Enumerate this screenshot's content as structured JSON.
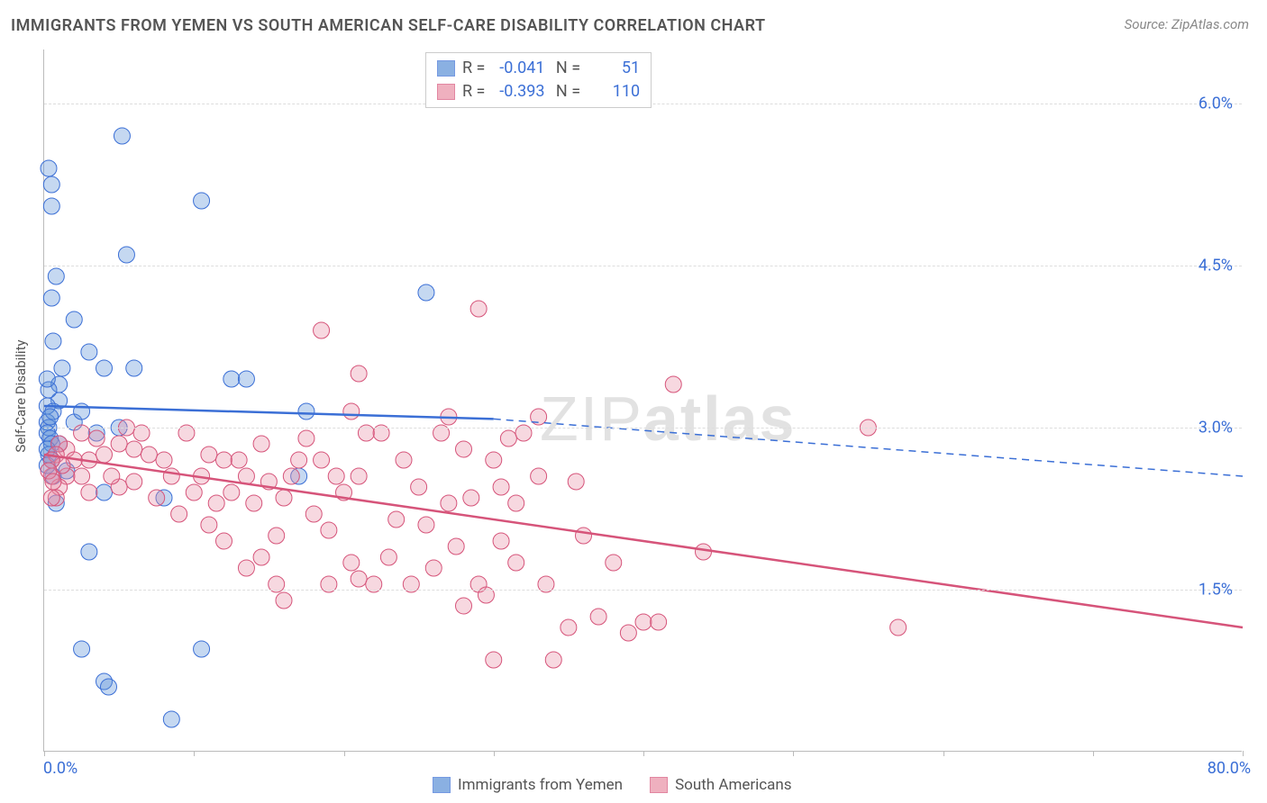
{
  "title": "IMMIGRANTS FROM YEMEN VS SOUTH AMERICAN SELF-CARE DISABILITY CORRELATION CHART",
  "source_label": "Source:",
  "source_name": "ZipAtlas.com",
  "watermark_thin": "ZIP",
  "watermark_bold": "atlas",
  "y_axis_label": "Self-Care Disability",
  "chart": {
    "type": "scatter",
    "background_color": "#ffffff",
    "grid_color": "#dddddd",
    "axis_color": "#bbbbbb",
    "tick_label_color": "#3b6fd6",
    "xlim": [
      0,
      80
    ],
    "ylim": [
      0,
      6.5
    ],
    "x_ticks": [
      0,
      10,
      20,
      30,
      40,
      50,
      60,
      70,
      80
    ],
    "x_min_label": "0.0%",
    "x_max_label": "80.0%",
    "y_gridlines": [
      1.5,
      3.0,
      4.5,
      6.0
    ],
    "y_tick_labels": [
      "1.5%",
      "3.0%",
      "4.5%",
      "6.0%"
    ],
    "marker_radius": 9,
    "marker_fill_opacity": 0.35,
    "line_width": 2.5,
    "series": [
      {
        "name": "Immigrants from Yemen",
        "color": "#5a8fd6",
        "stroke": "#3b6fd6",
        "R": "-0.041",
        "N": "51",
        "trend": {
          "x1": 0,
          "y1": 3.2,
          "x_solid_end": 30,
          "y_solid_end": 3.08,
          "x2": 80,
          "y2": 2.55,
          "dashed_after_solid": true
        },
        "points": [
          [
            0.3,
            5.4
          ],
          [
            5.2,
            5.7
          ],
          [
            0.5,
            5.25
          ],
          [
            0.5,
            5.05
          ],
          [
            10.5,
            5.1
          ],
          [
            5.5,
            4.6
          ],
          [
            0.8,
            4.4
          ],
          [
            0.5,
            4.2
          ],
          [
            2.0,
            4.0
          ],
          [
            0.6,
            3.8
          ],
          [
            3.0,
            3.7
          ],
          [
            4.0,
            3.55
          ],
          [
            6.0,
            3.55
          ],
          [
            1.0,
            3.4
          ],
          [
            25.5,
            4.25
          ],
          [
            12.5,
            3.45
          ],
          [
            13.5,
            3.45
          ],
          [
            1.0,
            3.25
          ],
          [
            0.2,
            3.2
          ],
          [
            0.2,
            3.05
          ],
          [
            0.3,
            3.0
          ],
          [
            0.2,
            2.95
          ],
          [
            0.4,
            2.9
          ],
          [
            1.0,
            2.85
          ],
          [
            0.6,
            3.15
          ],
          [
            2.0,
            3.05
          ],
          [
            3.5,
            2.95
          ],
          [
            0.5,
            2.7
          ],
          [
            1.5,
            2.6
          ],
          [
            8.0,
            2.35
          ],
          [
            17.0,
            2.55
          ],
          [
            17.5,
            3.15
          ],
          [
            4.0,
            2.4
          ],
          [
            0.8,
            2.3
          ],
          [
            3.0,
            1.85
          ],
          [
            2.5,
            0.95
          ],
          [
            10.5,
            0.95
          ],
          [
            4.0,
            0.65
          ],
          [
            4.3,
            0.6
          ],
          [
            8.5,
            0.3
          ],
          [
            0.3,
            3.35
          ],
          [
            0.4,
            3.1
          ],
          [
            0.5,
            2.85
          ],
          [
            0.3,
            2.75
          ],
          [
            0.6,
            2.55
          ],
          [
            2.5,
            3.15
          ],
          [
            0.2,
            3.45
          ],
          [
            1.2,
            3.55
          ],
          [
            0.2,
            2.8
          ],
          [
            0.2,
            2.65
          ],
          [
            5.0,
            3.0
          ]
        ]
      },
      {
        "name": "South Americans",
        "color": "#e98fa5",
        "stroke": "#d6547a",
        "R": "-0.393",
        "N": "110",
        "trend": {
          "x1": 0,
          "y1": 2.75,
          "x_solid_end": 80,
          "y_solid_end": 1.15,
          "x2": 80,
          "y2": 1.15,
          "dashed_after_solid": false
        },
        "points": [
          [
            18.5,
            3.9
          ],
          [
            29.0,
            4.1
          ],
          [
            21.0,
            3.5
          ],
          [
            21.5,
            2.95
          ],
          [
            22.5,
            2.95
          ],
          [
            21.0,
            2.55
          ],
          [
            9.5,
            2.95
          ],
          [
            11.0,
            2.75
          ],
          [
            12.0,
            2.7
          ],
          [
            8.0,
            2.7
          ],
          [
            7.0,
            2.75
          ],
          [
            6.0,
            2.8
          ],
          [
            5.0,
            2.85
          ],
          [
            4.0,
            2.75
          ],
          [
            3.0,
            2.7
          ],
          [
            2.5,
            2.55
          ],
          [
            1.5,
            2.55
          ],
          [
            1.0,
            2.45
          ],
          [
            0.8,
            2.35
          ],
          [
            0.5,
            2.35
          ],
          [
            0.5,
            2.55
          ],
          [
            1.5,
            2.8
          ],
          [
            3.5,
            2.9
          ],
          [
            5.5,
            3.0
          ],
          [
            6.5,
            2.95
          ],
          [
            8.5,
            2.55
          ],
          [
            10.0,
            2.4
          ],
          [
            12.5,
            2.4
          ],
          [
            13.5,
            2.55
          ],
          [
            14.0,
            2.3
          ],
          [
            15.0,
            2.5
          ],
          [
            16.0,
            2.35
          ],
          [
            17.0,
            2.7
          ],
          [
            18.0,
            2.2
          ],
          [
            19.0,
            2.05
          ],
          [
            20.0,
            2.4
          ],
          [
            20.5,
            1.75
          ],
          [
            21.0,
            1.6
          ],
          [
            22.0,
            1.55
          ],
          [
            23.0,
            1.8
          ],
          [
            24.0,
            2.7
          ],
          [
            25.0,
            2.45
          ],
          [
            25.5,
            2.1
          ],
          [
            26.0,
            1.7
          ],
          [
            27.0,
            2.3
          ],
          [
            27.5,
            1.9
          ],
          [
            28.0,
            2.8
          ],
          [
            28.5,
            2.35
          ],
          [
            29.0,
            1.55
          ],
          [
            29.5,
            1.45
          ],
          [
            30.0,
            2.7
          ],
          [
            30.5,
            1.95
          ],
          [
            31.0,
            2.9
          ],
          [
            31.5,
            1.75
          ],
          [
            32.0,
            2.95
          ],
          [
            33.0,
            3.1
          ],
          [
            33.5,
            1.55
          ],
          [
            34.0,
            0.85
          ],
          [
            35.0,
            1.15
          ],
          [
            36.0,
            2.0
          ],
          [
            37.0,
            1.25
          ],
          [
            38.0,
            1.75
          ],
          [
            39.0,
            1.1
          ],
          [
            40.0,
            1.2
          ],
          [
            41.0,
            1.2
          ],
          [
            42.0,
            3.4
          ],
          [
            44.0,
            1.85
          ],
          [
            57.0,
            1.15
          ],
          [
            5.0,
            2.45
          ],
          [
            6.0,
            2.5
          ],
          [
            7.5,
            2.35
          ],
          [
            9.0,
            2.2
          ],
          [
            10.5,
            2.55
          ],
          [
            11.5,
            2.3
          ],
          [
            13.0,
            2.7
          ],
          [
            14.5,
            2.85
          ],
          [
            15.5,
            2.0
          ],
          [
            16.5,
            2.55
          ],
          [
            17.5,
            2.9
          ],
          [
            18.5,
            2.7
          ],
          [
            19.5,
            2.55
          ],
          [
            20.5,
            3.15
          ],
          [
            26.5,
            2.95
          ],
          [
            27.0,
            3.1
          ],
          [
            28.0,
            1.35
          ],
          [
            24.5,
            1.55
          ],
          [
            23.5,
            2.15
          ],
          [
            19.0,
            1.55
          ],
          [
            30.0,
            0.85
          ],
          [
            55.0,
            3.0
          ],
          [
            2.0,
            2.7
          ],
          [
            3.0,
            2.4
          ],
          [
            4.5,
            2.55
          ],
          [
            1.0,
            2.85
          ],
          [
            2.5,
            2.95
          ],
          [
            0.8,
            2.75
          ],
          [
            1.2,
            2.65
          ],
          [
            0.5,
            2.7
          ],
          [
            0.3,
            2.6
          ],
          [
            0.6,
            2.5
          ],
          [
            11.0,
            2.1
          ],
          [
            12.0,
            1.95
          ],
          [
            13.5,
            1.7
          ],
          [
            14.5,
            1.8
          ],
          [
            15.5,
            1.55
          ],
          [
            16.0,
            1.4
          ],
          [
            30.5,
            2.45
          ],
          [
            31.5,
            2.3
          ],
          [
            33.0,
            2.55
          ],
          [
            35.5,
            2.5
          ]
        ]
      }
    ]
  }
}
